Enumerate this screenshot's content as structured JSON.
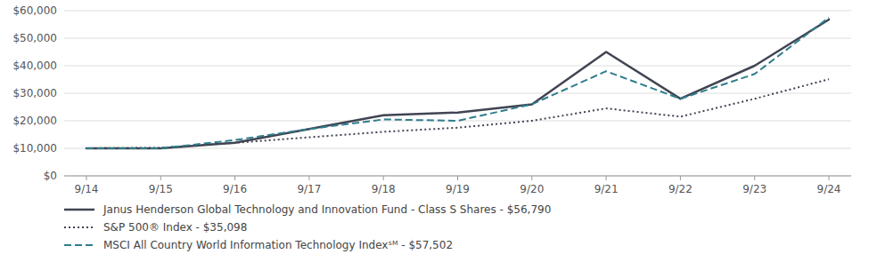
{
  "chart_data": {
    "type": "line",
    "categories": [
      "9/14",
      "9/15",
      "9/16",
      "9/17",
      "9/18",
      "9/19",
      "9/20",
      "9/21",
      "9/22",
      "9/23",
      "9/24"
    ],
    "series": [
      {
        "name": "Janus Henderson Global Technology and Innovation Fund - Class S Shares - $56,790",
        "color": "#404452",
        "line_style": "solid",
        "values": [
          10000,
          10000,
          12000,
          17000,
          22000,
          23000,
          26000,
          45000,
          28000,
          40000,
          56790
        ]
      },
      {
        "name": "S&P 500® Index - $35,098",
        "color": "#404452",
        "line_style": "dotted",
        "values": [
          10000,
          10200,
          12000,
          14000,
          16000,
          17500,
          20000,
          24500,
          21500,
          28000,
          35098
        ]
      },
      {
        "name": "MSCI All Country World Information Technology Indexˢᴹ - $57,502",
        "color": "#2e7d8c",
        "line_style": "dashed",
        "values": [
          10000,
          10000,
          13000,
          17000,
          20500,
          20000,
          26000,
          38000,
          28000,
          37000,
          57502
        ]
      }
    ],
    "ylim": [
      0,
      60000
    ],
    "yticks": [
      {
        "value": 0,
        "label": "$0"
      },
      {
        "value": 10000,
        "label": "$10,000"
      },
      {
        "value": 20000,
        "label": "$20,000"
      },
      {
        "value": 30000,
        "label": "$30,000"
      },
      {
        "value": 40000,
        "label": "$40,000"
      },
      {
        "value": 50000,
        "label": "$50,000"
      },
      {
        "value": 60000,
        "label": "$60,000"
      }
    ],
    "grid": true,
    "legend": "bottom"
  }
}
